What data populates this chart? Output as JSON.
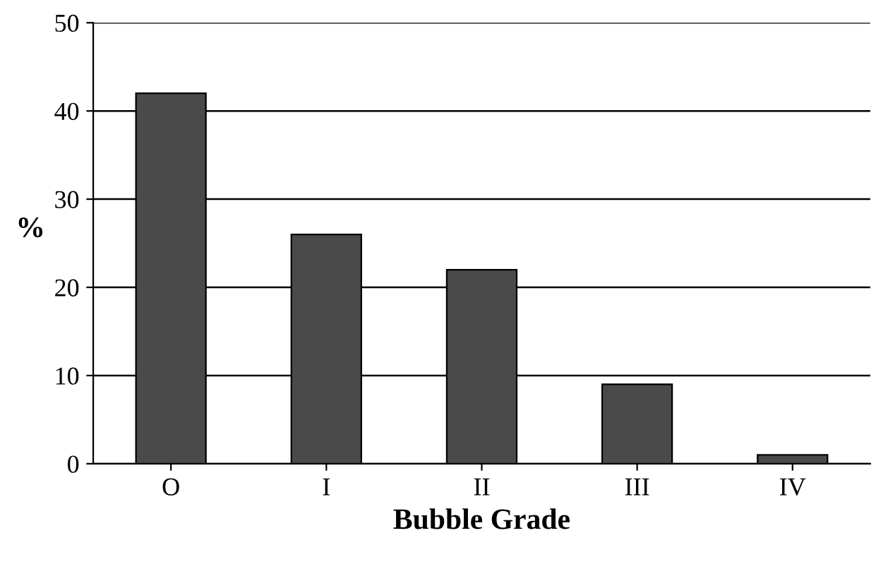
{
  "chart_data": {
    "type": "bar",
    "xlabel": "Bubble Grade",
    "ylabel": "%",
    "categories": [
      "O",
      "I",
      "II",
      "III",
      "IV"
    ],
    "values": [
      42,
      26,
      22,
      9,
      1
    ],
    "color": "#4a4a4a",
    "ylim": [
      0,
      50
    ],
    "yticks": [
      0,
      10,
      20,
      30,
      40,
      50
    ],
    "grid": "y"
  }
}
